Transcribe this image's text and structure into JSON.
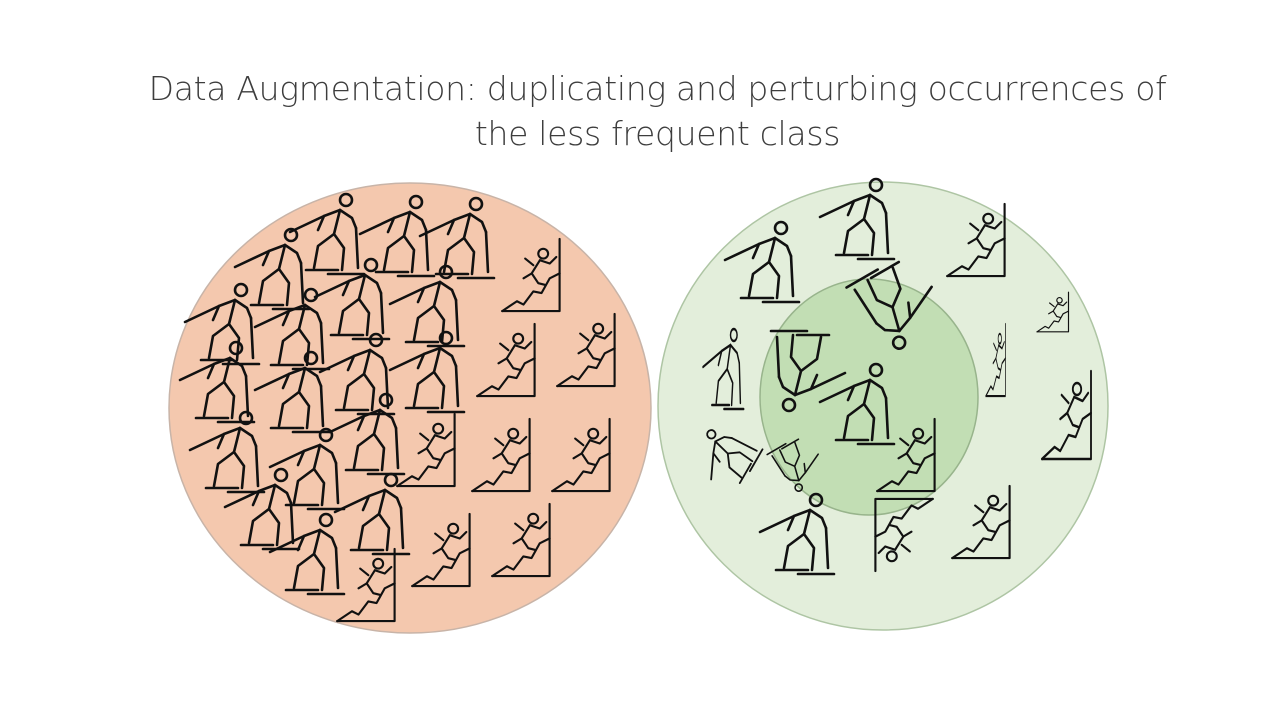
{
  "slide": {
    "title_lines": [
      "Data Augmentation: duplicating and perturbing occurrences of",
      "the less frequent class"
    ]
  },
  "colors": {
    "left_fill": "#f4c8ae",
    "left_stroke": "#c8b4a8",
    "right_outer_fill": "#e3eedb",
    "right_outer_stroke": "#aec5a4",
    "right_inner_fill": "#c2deb4",
    "right_inner_stroke": "#98b48c",
    "icon_ink": "#111111"
  },
  "icons": {
    "majority": "cross-country-skier-icon",
    "minority": "rock-climber-icon"
  }
}
